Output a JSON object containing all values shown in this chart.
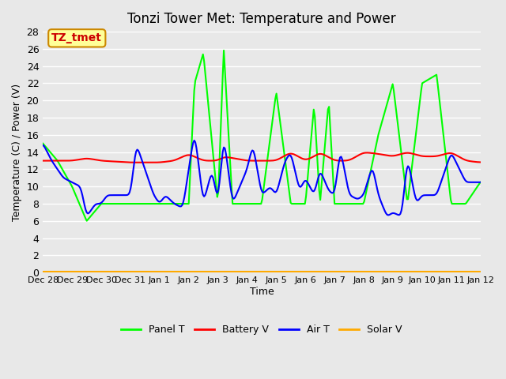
{
  "title": "Tonzi Tower Met: Temperature and Power",
  "ylabel": "Temperature (C) / Power (V)",
  "xlabel": "Time",
  "ylim": [
    0,
    28
  ],
  "yticks": [
    0,
    2,
    4,
    6,
    8,
    10,
    12,
    14,
    16,
    18,
    20,
    22,
    24,
    26,
    28
  ],
  "xtick_labels": [
    "Dec 28",
    "Dec 29",
    "Dec 30",
    "Dec 31",
    "Jan 1",
    "Jan 2",
    "Jan 3",
    "Jan 4",
    "Jan 5",
    "Jan 6",
    "Jan 7",
    "Jan 8",
    "Jan 9",
    "Jan 10",
    "Jan 11",
    "Jan 12"
  ],
  "background_color": "#e8e8e8",
  "plot_bg_color": "#e8e8e8",
  "grid_color": "#ffffff",
  "annotation_text": "TZ_tmet",
  "annotation_bg": "#ffff99",
  "annotation_border": "#cc8800",
  "annotation_text_color": "#cc0000",
  "legend_entries": [
    "Panel T",
    "Battery V",
    "Air T",
    "Solar V"
  ],
  "legend_colors": [
    "#00ff00",
    "#ff0000",
    "#0000ff",
    "#ffaa00"
  ],
  "line_width": 1.5,
  "num_points": 400
}
